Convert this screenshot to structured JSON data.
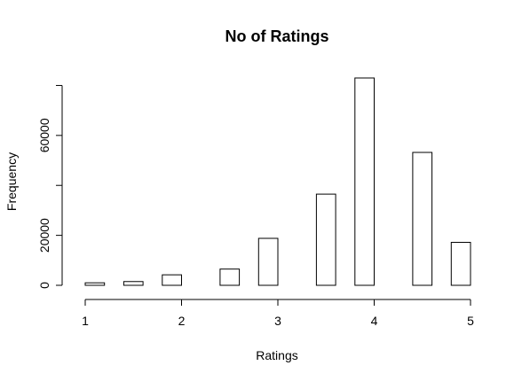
{
  "chart_data": {
    "type": "bar",
    "title": "No of Ratings",
    "xlabel": "Ratings",
    "ylabel": "Frequency",
    "bars": [
      {
        "x0": 1.0,
        "x1": 1.2,
        "value": 1000
      },
      {
        "x0": 1.4,
        "x1": 1.6,
        "value": 1500
      },
      {
        "x0": 1.8,
        "x1": 2.0,
        "value": 4200
      },
      {
        "x0": 2.4,
        "x1": 2.6,
        "value": 6500
      },
      {
        "x0": 2.8,
        "x1": 3.0,
        "value": 18800
      },
      {
        "x0": 3.4,
        "x1": 3.6,
        "value": 36500
      },
      {
        "x0": 3.8,
        "x1": 4.0,
        "value": 83000
      },
      {
        "x0": 4.4,
        "x1": 4.6,
        "value": 53200
      },
      {
        "x0": 4.8,
        "x1": 5.0,
        "value": 17200
      }
    ],
    "xticks": [
      1,
      2,
      3,
      4,
      5
    ],
    "xtick_labels": [
      "1",
      "2",
      "3",
      "4",
      "5"
    ],
    "yticks": [
      0,
      20000,
      40000,
      60000,
      80000
    ],
    "ytick_labels": [
      "0",
      "20000",
      "",
      "60000",
      ""
    ],
    "xlim": [
      1,
      5
    ],
    "ylim": [
      0,
      83000
    ],
    "grid": false,
    "legend": "none"
  }
}
